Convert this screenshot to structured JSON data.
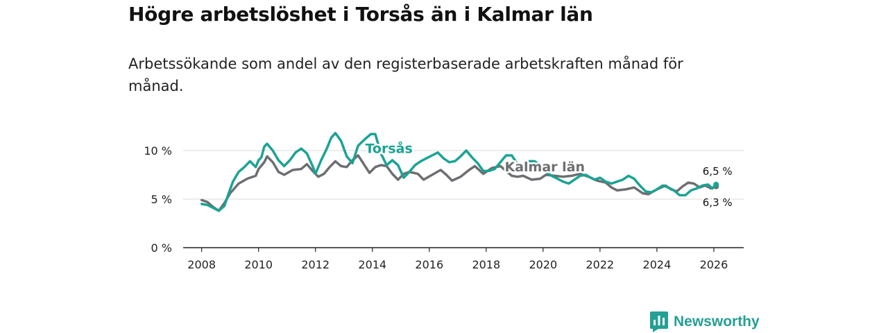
{
  "title": "Högre arbetslöshet i Torsås än i Kalmar län",
  "subtitle": "Arbetssökande som andel av den registerbaserade arbetskraften månad för månad.",
  "brand": {
    "name": "Newsworthy",
    "color": "#24a094"
  },
  "chart_data": {
    "type": "line",
    "ylim": [
      0,
      13
    ],
    "xlim": [
      2007.35,
      2027.05
    ],
    "yticks": [
      {
        "v": 0,
        "label": "0 %"
      },
      {
        "v": 5,
        "label": "5 %"
      },
      {
        "v": 10,
        "label": "10 %"
      }
    ],
    "xticks": [
      {
        "v": 2008,
        "label": "2008"
      },
      {
        "v": 2010,
        "label": "2010"
      },
      {
        "v": 2012,
        "label": "2012"
      },
      {
        "v": 2014,
        "label": "2014"
      },
      {
        "v": 2016,
        "label": "2016"
      },
      {
        "v": 2018,
        "label": "2018"
      },
      {
        "v": 2020,
        "label": "2020"
      },
      {
        "v": 2022,
        "label": "2022"
      },
      {
        "v": 2024,
        "label": "2024"
      },
      {
        "v": 2026,
        "label": "2026"
      }
    ],
    "series": [
      {
        "name": "Kalmar län",
        "color": "#6d6e71",
        "label": "Kalmar län",
        "label_at": [
          2018.65,
          7.85
        ],
        "end_label": "6,3 %",
        "end_value": 6.3,
        "points": [
          [
            2008.0,
            4.9
          ],
          [
            2008.2,
            4.7
          ],
          [
            2008.4,
            4.2
          ],
          [
            2008.6,
            3.8
          ],
          [
            2008.8,
            4.6
          ],
          [
            2009.0,
            5.6
          ],
          [
            2009.3,
            6.6
          ],
          [
            2009.6,
            7.1
          ],
          [
            2009.9,
            7.4
          ],
          [
            2010.0,
            8.1
          ],
          [
            2010.2,
            8.8
          ],
          [
            2010.3,
            9.4
          ],
          [
            2010.5,
            8.8
          ],
          [
            2010.7,
            7.8
          ],
          [
            2010.9,
            7.5
          ],
          [
            2011.2,
            8.0
          ],
          [
            2011.5,
            8.1
          ],
          [
            2011.7,
            8.6
          ],
          [
            2011.9,
            7.9
          ],
          [
            2012.1,
            7.3
          ],
          [
            2012.3,
            7.6
          ],
          [
            2012.5,
            8.3
          ],
          [
            2012.7,
            8.9
          ],
          [
            2012.9,
            8.4
          ],
          [
            2013.1,
            8.3
          ],
          [
            2013.3,
            9.0
          ],
          [
            2013.5,
            9.5
          ],
          [
            2013.7,
            8.6
          ],
          [
            2013.9,
            7.7
          ],
          [
            2014.1,
            8.3
          ],
          [
            2014.3,
            8.5
          ],
          [
            2014.5,
            8.4
          ],
          [
            2014.7,
            7.6
          ],
          [
            2014.9,
            7.0
          ],
          [
            2015.1,
            7.6
          ],
          [
            2015.3,
            7.8
          ],
          [
            2015.6,
            7.6
          ],
          [
            2015.8,
            7.0
          ],
          [
            2016.1,
            7.5
          ],
          [
            2016.4,
            8.0
          ],
          [
            2016.6,
            7.5
          ],
          [
            2016.8,
            6.9
          ],
          [
            2017.1,
            7.3
          ],
          [
            2017.4,
            8.0
          ],
          [
            2017.6,
            8.4
          ],
          [
            2017.9,
            7.6
          ],
          [
            2018.2,
            8.2
          ],
          [
            2018.5,
            8.4
          ],
          [
            2018.7,
            7.9
          ],
          [
            2018.9,
            7.4
          ],
          [
            2019.1,
            7.3
          ],
          [
            2019.3,
            7.4
          ],
          [
            2019.6,
            7.0
          ],
          [
            2019.9,
            7.1
          ],
          [
            2020.1,
            7.5
          ],
          [
            2020.4,
            7.4
          ],
          [
            2020.7,
            7.3
          ],
          [
            2021.0,
            7.4
          ],
          [
            2021.3,
            7.6
          ],
          [
            2021.6,
            7.3
          ],
          [
            2021.9,
            6.9
          ],
          [
            2022.2,
            6.7
          ],
          [
            2022.4,
            6.2
          ],
          [
            2022.6,
            5.9
          ],
          [
            2022.9,
            6.0
          ],
          [
            2023.2,
            6.2
          ],
          [
            2023.5,
            5.6
          ],
          [
            2023.7,
            5.5
          ],
          [
            2024.0,
            6.0
          ],
          [
            2024.3,
            6.4
          ],
          [
            2024.5,
            6.0
          ],
          [
            2024.7,
            5.8
          ],
          [
            2024.9,
            6.3
          ],
          [
            2025.1,
            6.7
          ],
          [
            2025.3,
            6.6
          ],
          [
            2025.5,
            6.2
          ],
          [
            2025.7,
            6.4
          ],
          [
            2025.9,
            6.1
          ],
          [
            2026.08,
            6.3
          ]
        ]
      },
      {
        "name": "Torsås",
        "color": "#1aa393",
        "label": "Torsås",
        "label_at": [
          2013.75,
          9.75
        ],
        "end_label": "6,5 %",
        "end_value": 6.5,
        "points": [
          [
            2008.0,
            4.5
          ],
          [
            2008.2,
            4.4
          ],
          [
            2008.4,
            4.1
          ],
          [
            2008.6,
            3.8
          ],
          [
            2008.8,
            4.3
          ],
          [
            2008.95,
            5.6
          ],
          [
            2009.1,
            6.8
          ],
          [
            2009.3,
            7.8
          ],
          [
            2009.5,
            8.3
          ],
          [
            2009.7,
            8.9
          ],
          [
            2009.9,
            8.3
          ],
          [
            2010.0,
            9.0
          ],
          [
            2010.1,
            9.3
          ],
          [
            2010.2,
            10.4
          ],
          [
            2010.3,
            10.7
          ],
          [
            2010.5,
            10.0
          ],
          [
            2010.7,
            9.0
          ],
          [
            2010.9,
            8.4
          ],
          [
            2011.1,
            9.0
          ],
          [
            2011.3,
            9.8
          ],
          [
            2011.5,
            10.2
          ],
          [
            2011.7,
            9.7
          ],
          [
            2011.9,
            8.4
          ],
          [
            2012.0,
            7.6
          ],
          [
            2012.2,
            9.0
          ],
          [
            2012.4,
            10.2
          ],
          [
            2012.55,
            11.3
          ],
          [
            2012.7,
            11.8
          ],
          [
            2012.9,
            11.0
          ],
          [
            2013.1,
            9.4
          ],
          [
            2013.3,
            8.7
          ],
          [
            2013.5,
            10.5
          ],
          [
            2013.75,
            11.2
          ],
          [
            2013.95,
            11.7
          ],
          [
            2014.1,
            11.7
          ],
          [
            2014.3,
            9.7
          ],
          [
            2014.5,
            8.5
          ],
          [
            2014.7,
            9.0
          ],
          [
            2014.9,
            8.5
          ],
          [
            2015.1,
            7.2
          ],
          [
            2015.3,
            7.8
          ],
          [
            2015.5,
            8.5
          ],
          [
            2015.7,
            8.9
          ],
          [
            2015.9,
            9.2
          ],
          [
            2016.1,
            9.5
          ],
          [
            2016.3,
            9.8
          ],
          [
            2016.5,
            9.2
          ],
          [
            2016.7,
            8.8
          ],
          [
            2016.9,
            8.9
          ],
          [
            2017.1,
            9.4
          ],
          [
            2017.3,
            10.0
          ],
          [
            2017.5,
            9.3
          ],
          [
            2017.7,
            8.7
          ],
          [
            2017.9,
            7.9
          ],
          [
            2018.1,
            7.9
          ],
          [
            2018.3,
            8.1
          ],
          [
            2018.5,
            8.8
          ],
          [
            2018.7,
            9.5
          ],
          [
            2018.9,
            9.5
          ],
          [
            2019.1,
            8.6
          ],
          [
            2019.3,
            8.2
          ],
          [
            2019.5,
            8.9
          ],
          [
            2019.7,
            8.9
          ],
          [
            2019.9,
            8.5
          ],
          [
            2020.1,
            7.8
          ],
          [
            2020.3,
            7.4
          ],
          [
            2020.5,
            7.1
          ],
          [
            2020.7,
            6.8
          ],
          [
            2020.9,
            6.6
          ],
          [
            2021.1,
            7.0
          ],
          [
            2021.3,
            7.4
          ],
          [
            2021.5,
            7.5
          ],
          [
            2021.8,
            7.0
          ],
          [
            2022.0,
            7.2
          ],
          [
            2022.2,
            6.8
          ],
          [
            2022.4,
            6.6
          ],
          [
            2022.6,
            6.8
          ],
          [
            2022.8,
            7.0
          ],
          [
            2023.0,
            7.4
          ],
          [
            2023.2,
            7.1
          ],
          [
            2023.4,
            6.4
          ],
          [
            2023.6,
            5.8
          ],
          [
            2023.8,
            5.7
          ],
          [
            2024.0,
            6.0
          ],
          [
            2024.2,
            6.4
          ],
          [
            2024.4,
            6.2
          ],
          [
            2024.6,
            5.9
          ],
          [
            2024.8,
            5.4
          ],
          [
            2025.0,
            5.4
          ],
          [
            2025.2,
            5.9
          ],
          [
            2025.4,
            6.1
          ],
          [
            2025.6,
            6.4
          ],
          [
            2025.8,
            6.5
          ],
          [
            2025.95,
            6.1
          ],
          [
            2026.08,
            6.5
          ]
        ]
      }
    ]
  }
}
